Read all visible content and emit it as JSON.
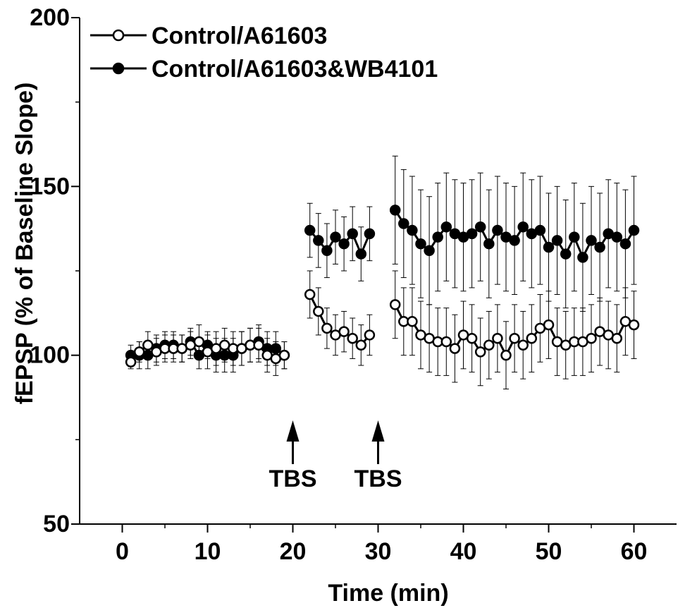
{
  "chart_data": {
    "type": "line",
    "xlabel": "Time (min)",
    "ylabel": "fEPSP (% of Baseline Slope)",
    "xlim": [
      -5,
      65
    ],
    "ylim": [
      50,
      200
    ],
    "x_ticks": [
      0,
      10,
      20,
      30,
      40,
      50,
      60
    ],
    "y_ticks": [
      50,
      100,
      150,
      200
    ],
    "legend_position": "top-left",
    "annotations": [
      {
        "text": "TBS",
        "x": 20
      },
      {
        "text": "TBS",
        "x": 30
      }
    ],
    "series": [
      {
        "name": "Control/A61603",
        "marker": "open-circle",
        "segments": [
          {
            "x": [
              1,
              2,
              3,
              4,
              5,
              6,
              7,
              8,
              9,
              10,
              11,
              12,
              13,
              14,
              15,
              16,
              17,
              18,
              19
            ],
            "y": [
              98,
              101,
              103,
              101,
              102,
              102,
              102,
              103,
              104,
              101,
              102,
              103,
              102,
              102,
              103,
              103,
              100,
              99,
              100
            ],
            "err": [
              2,
              3,
              4,
              4,
              4,
              4,
              4,
              4,
              5,
              5,
              5,
              5,
              5,
              5,
              5,
              5,
              5,
              5,
              4
            ]
          },
          {
            "x": [
              22,
              23,
              24,
              25,
              26,
              27,
              28,
              29
            ],
            "y": [
              118,
              113,
              108,
              106,
              107,
              105,
              103,
              106
            ],
            "err": [
              7,
              7,
              6,
              6,
              6,
              6,
              6,
              6
            ]
          },
          {
            "x": [
              32,
              33,
              34,
              35,
              36,
              37,
              38,
              39,
              40,
              41,
              42,
              43,
              44,
              45,
              46,
              47,
              48,
              49,
              50,
              51,
              52,
              53,
              54,
              55,
              56,
              57,
              58,
              59,
              60
            ],
            "y": [
              115,
              110,
              110,
              106,
              105,
              104,
              104,
              102,
              106,
              105,
              101,
              103,
              105,
              100,
              105,
              103,
              105,
              108,
              109,
              104,
              103,
              104,
              104,
              105,
              107,
              106,
              105,
              110,
              109
            ],
            "err": [
              10,
              10,
              10,
              10,
              10,
              10,
              10,
              10,
              10,
              10,
              10,
              10,
              10,
              10,
              10,
              10,
              10,
              10,
              10,
              10,
              10,
              10,
              10,
              10,
              10,
              10,
              10,
              10,
              10
            ]
          }
        ]
      },
      {
        "name": "Control/A61603&WB4101",
        "marker": "filled-circle",
        "segments": [
          {
            "x": [
              1,
              2,
              3,
              4,
              5,
              6,
              7,
              8,
              9,
              10,
              11,
              12,
              13,
              14,
              15,
              16,
              17,
              18,
              19
            ],
            "y": [
              100,
              100,
              100,
              102,
              103,
              103,
              102,
              104,
              100,
              103,
              100,
              100,
              100,
              102,
              103,
              104,
              102,
              102,
              100
            ],
            "err": [
              3,
              4,
              4,
              4,
              4,
              4,
              4,
              4,
              4,
              4,
              5,
              5,
              5,
              5,
              5,
              5,
              5,
              5,
              4
            ]
          },
          {
            "x": [
              22,
              23,
              24,
              25,
              26,
              27,
              28,
              29
            ],
            "y": [
              137,
              134,
              131,
              135,
              133,
              136,
              130,
              136
            ],
            "err": [
              8,
              8,
              8,
              8,
              8,
              8,
              8,
              8
            ]
          },
          {
            "x": [
              32,
              33,
              34,
              35,
              36,
              37,
              38,
              39,
              40,
              41,
              42,
              43,
              44,
              45,
              46,
              47,
              48,
              49,
              50,
              51,
              52,
              53,
              54,
              55,
              56,
              57,
              58,
              59,
              60
            ],
            "y": [
              143,
              139,
              137,
              133,
              131,
              135,
              138,
              136,
              135,
              136,
              138,
              133,
              137,
              135,
              134,
              138,
              136,
              137,
              132,
              134,
              130,
              135,
              129,
              134,
              132,
              136,
              135,
              133,
              137
            ],
            "err": [
              16,
              16,
              16,
              16,
              16,
              16,
              16,
              16,
              16,
              16,
              16,
              16,
              16,
              16,
              16,
              16,
              16,
              16,
              16,
              16,
              16,
              16,
              16,
              16,
              16,
              16,
              16,
              16,
              16
            ]
          }
        ]
      }
    ]
  }
}
